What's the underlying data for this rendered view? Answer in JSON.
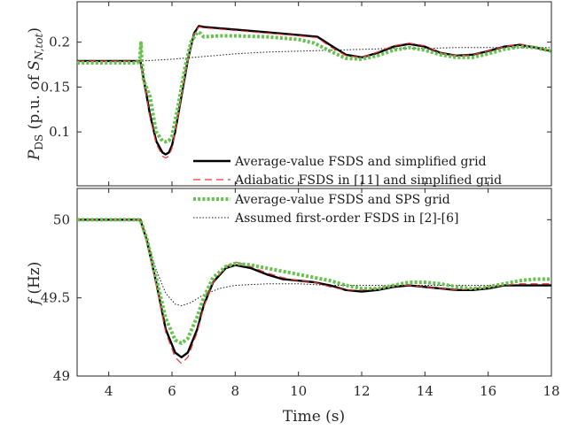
{
  "chart_data": [
    {
      "type": "line",
      "panel": "top",
      "ylabel_main": "P",
      "ylabel_sub": "DS",
      "ylabel_rest": " (p.u. of ",
      "ylabel_s": "S",
      "ylabel_s_sub": "N,tot",
      "ylabel_close": ")",
      "xlim": [
        3,
        18
      ],
      "ylim": [
        0.04,
        0.245
      ],
      "yticks": [
        0.1,
        0.15,
        0.2
      ],
      "ytick_labels": [
        "0.1",
        "0.15",
        "0.2"
      ],
      "legend_placement": "bottom-right",
      "series": [
        {
          "name": "Average-value FSDS and simplified grid",
          "color": "#000000",
          "style": "solid",
          "x": [
            3,
            5.0,
            5.1,
            5.3,
            5.5,
            5.7,
            5.8,
            5.9,
            6.0,
            6.1,
            6.3,
            6.5,
            6.7,
            6.85,
            7.0,
            8.0,
            9.0,
            10.0,
            10.6,
            11.0,
            11.5,
            12.0,
            12.5,
            13.0,
            13.5,
            14.0,
            14.5,
            15.0,
            15.5,
            16.0,
            16.5,
            17.0,
            17.5,
            18.0
          ],
          "y": [
            0.179,
            0.179,
            0.16,
            0.12,
            0.09,
            0.077,
            0.075,
            0.077,
            0.085,
            0.1,
            0.14,
            0.18,
            0.21,
            0.218,
            0.217,
            0.214,
            0.211,
            0.208,
            0.206,
            0.197,
            0.186,
            0.183,
            0.188,
            0.195,
            0.198,
            0.195,
            0.188,
            0.185,
            0.186,
            0.19,
            0.195,
            0.197,
            0.194,
            0.19
          ]
        },
        {
          "name": "Adiabatic FSDS in [11] and simplified grid",
          "color": "#e8383d",
          "style": "dashed",
          "x": [
            3,
            5.0,
            5.1,
            5.3,
            5.5,
            5.7,
            5.8,
            5.9,
            6.0,
            6.1,
            6.3,
            6.5,
            6.7,
            6.85,
            7.0,
            8.0,
            9.0,
            10.0,
            10.6,
            11.0,
            11.5,
            12.0,
            12.5,
            13.0,
            13.5,
            14.0,
            14.5,
            15.0,
            15.5,
            16.0,
            16.5,
            17.0,
            17.5,
            18.0
          ],
          "y": [
            0.179,
            0.179,
            0.158,
            0.117,
            0.087,
            0.073,
            0.071,
            0.073,
            0.082,
            0.098,
            0.14,
            0.18,
            0.21,
            0.217,
            0.216,
            0.213,
            0.21,
            0.207,
            0.205,
            0.195,
            0.185,
            0.183,
            0.189,
            0.196,
            0.199,
            0.196,
            0.188,
            0.185,
            0.186,
            0.19,
            0.195,
            0.198,
            0.195,
            0.19
          ]
        },
        {
          "name": "Average-value FSDS and SPS grid",
          "color": "#66c24d",
          "style": "dotted-thick",
          "x": [
            3,
            4.9,
            4.98,
            5.02,
            5.05,
            5.1,
            5.3,
            5.5,
            5.7,
            5.8,
            5.9,
            6.0,
            6.2,
            6.4,
            6.6,
            6.8,
            6.9,
            7.0,
            7.5,
            8.0,
            9.0,
            10.0,
            10.5,
            11.0,
            11.5,
            12.0,
            12.5,
            13.0,
            13.5,
            14.0,
            14.5,
            15.0,
            15.5,
            16.0,
            16.5,
            17.0,
            17.5,
            18.0
          ],
          "y": [
            0.177,
            0.177,
            0.182,
            0.199,
            0.178,
            0.158,
            0.14,
            0.1,
            0.09,
            0.089,
            0.09,
            0.095,
            0.13,
            0.17,
            0.2,
            0.211,
            0.21,
            0.206,
            0.207,
            0.207,
            0.206,
            0.203,
            0.199,
            0.19,
            0.182,
            0.181,
            0.185,
            0.191,
            0.194,
            0.191,
            0.186,
            0.183,
            0.183,
            0.187,
            0.192,
            0.195,
            0.194,
            0.19
          ]
        },
        {
          "name": "Assumed first-order FSDS in [2]-[6]",
          "color": "#1a1a1a",
          "style": "dotted-thin",
          "x": [
            3,
            5.0,
            5.5,
            6.0,
            7.0,
            8.0,
            9.0,
            10.0,
            11.0,
            12.0,
            13.0,
            14.0,
            15.0,
            16.0,
            17.0,
            18.0
          ],
          "y": [
            0.179,
            0.179,
            0.18,
            0.181,
            0.184,
            0.187,
            0.189,
            0.19,
            0.191,
            0.192,
            0.193,
            0.193,
            0.194,
            0.194,
            0.194,
            0.194
          ]
        }
      ]
    },
    {
      "type": "line",
      "panel": "bottom",
      "ylabel_main": "f",
      "ylabel_rest": " (Hz)",
      "xlabel": "Time (s)",
      "xlim": [
        3,
        18
      ],
      "ylim": [
        49.0,
        50.2
      ],
      "xticks": [
        4,
        6,
        8,
        10,
        12,
        14,
        16,
        18
      ],
      "xtick_labels": [
        "4",
        "6",
        "8",
        "10",
        "12",
        "14",
        "16",
        "18"
      ],
      "yticks": [
        49,
        49.5,
        50
      ],
      "ytick_labels": [
        "49",
        "49.5",
        "50"
      ],
      "series": [
        {
          "name": "Average-value FSDS and simplified grid",
          "color": "#000000",
          "style": "solid",
          "x": [
            3,
            5.0,
            5.2,
            5.5,
            5.8,
            6.1,
            6.3,
            6.5,
            6.8,
            7.0,
            7.3,
            7.7,
            8.0,
            8.5,
            9.0,
            9.5,
            10.0,
            10.5,
            11.0,
            11.5,
            12.0,
            12.5,
            13.0,
            13.5,
            14.0,
            14.5,
            15.0,
            15.5,
            16.0,
            16.5,
            17.0,
            17.5,
            18.0
          ],
          "y": [
            50.0,
            50.0,
            49.87,
            49.6,
            49.3,
            49.15,
            49.12,
            49.15,
            49.3,
            49.45,
            49.6,
            49.69,
            49.71,
            49.69,
            49.65,
            49.62,
            49.61,
            49.6,
            49.58,
            49.55,
            49.54,
            49.55,
            49.57,
            49.58,
            49.57,
            49.56,
            49.55,
            49.55,
            49.56,
            49.58,
            49.58,
            49.58,
            49.58
          ]
        },
        {
          "name": "Adiabatic FSDS in [11] and simplified grid",
          "color": "#e8383d",
          "style": "dashed",
          "x": [
            3,
            5.0,
            5.2,
            5.5,
            5.8,
            6.1,
            6.3,
            6.5,
            6.8,
            7.0,
            7.3,
            7.7,
            8.0,
            8.5,
            9.0,
            9.5,
            10.0,
            10.5,
            11.0,
            11.5,
            12.0,
            12.5,
            13.0,
            13.5,
            14.0,
            14.5,
            15.0,
            15.5,
            16.0,
            16.5,
            17.0,
            17.5,
            18.0
          ],
          "y": [
            50.0,
            50.0,
            49.86,
            49.58,
            49.28,
            49.12,
            49.08,
            49.12,
            49.28,
            49.44,
            49.6,
            49.7,
            49.73,
            49.7,
            49.66,
            49.63,
            49.61,
            49.6,
            49.57,
            49.55,
            49.55,
            49.56,
            49.58,
            49.58,
            49.57,
            49.56,
            49.55,
            49.56,
            49.57,
            49.58,
            49.59,
            49.59,
            49.59
          ]
        },
        {
          "name": "Average-value FSDS and SPS grid",
          "color": "#66c24d",
          "style": "dotted-thick",
          "x": [
            3,
            5.0,
            5.2,
            5.5,
            5.8,
            6.1,
            6.3,
            6.5,
            6.8,
            7.0,
            7.3,
            7.7,
            8.0,
            8.5,
            9.0,
            9.5,
            10.0,
            10.5,
            11.0,
            11.5,
            12.0,
            12.5,
            13.0,
            13.5,
            14.0,
            14.5,
            15.0,
            15.5,
            16.0,
            16.5,
            17.0,
            17.5,
            18.0
          ],
          "y": [
            50.0,
            50.0,
            49.88,
            49.63,
            49.37,
            49.23,
            49.21,
            49.24,
            49.38,
            49.5,
            49.63,
            49.7,
            49.72,
            49.71,
            49.69,
            49.67,
            49.65,
            49.63,
            49.61,
            49.58,
            49.56,
            49.56,
            49.58,
            49.6,
            49.6,
            49.59,
            49.57,
            49.56,
            49.57,
            49.59,
            49.61,
            49.62,
            49.62
          ]
        },
        {
          "name": "Assumed first-order FSDS in [2]-[6]",
          "color": "#1a1a1a",
          "style": "dotted-thin",
          "x": [
            3,
            5.0,
            5.2,
            5.5,
            5.8,
            6.1,
            6.3,
            6.6,
            7.0,
            7.5,
            8.0,
            9.0,
            10.0,
            11.0,
            12.0,
            13.0,
            14.0,
            15.0,
            16.0,
            17.0,
            18.0
          ],
          "y": [
            50.0,
            50.0,
            49.88,
            49.68,
            49.53,
            49.46,
            49.45,
            49.47,
            49.52,
            49.56,
            49.58,
            49.59,
            49.59,
            49.58,
            49.58,
            49.58,
            49.58,
            49.58,
            49.58,
            49.58,
            49.58
          ]
        }
      ]
    }
  ]
}
